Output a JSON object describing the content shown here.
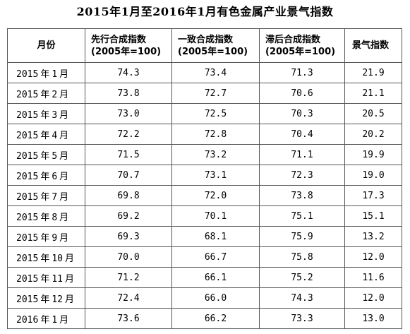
{
  "title": "2015年1月至2016年1月有色金属产业景气指数",
  "headers": [
    {
      "line1": "月份",
      "line2": ""
    },
    {
      "line1": "先行合成指数",
      "line2": "(2005年=100)"
    },
    {
      "line1": "一致合成指数",
      "line2": "(2005年=100)"
    },
    {
      "line1": "滞后合成指数",
      "line2": "(2005年=100)"
    },
    {
      "line1": "景气指数",
      "line2": ""
    }
  ],
  "rows": [
    {
      "month": "2015年1月",
      "leading": "74.3",
      "coincident": "73.4",
      "lagging": "71.3",
      "climate": "21.9"
    },
    {
      "month": "2015年2月",
      "leading": "73.8",
      "coincident": "72.7",
      "lagging": "70.6",
      "climate": "21.1"
    },
    {
      "month": "2015年3月",
      "leading": "73.0",
      "coincident": "72.5",
      "lagging": "70.3",
      "climate": "20.5"
    },
    {
      "month": "2015年4月",
      "leading": "72.2",
      "coincident": "72.8",
      "lagging": "70.4",
      "climate": "20.2"
    },
    {
      "month": "2015年5月",
      "leading": "71.5",
      "coincident": "73.2",
      "lagging": "71.1",
      "climate": "19.9"
    },
    {
      "month": "2015年6月",
      "leading": "70.7",
      "coincident": "73.1",
      "lagging": "72.3",
      "climate": "19.0"
    },
    {
      "month": "2015年7月",
      "leading": "69.8",
      "coincident": "72.0",
      "lagging": "73.8",
      "climate": "17.3"
    },
    {
      "month": "2015年8月",
      "leading": "69.2",
      "coincident": "70.1",
      "lagging": "75.1",
      "climate": "15.1"
    },
    {
      "month": "2015年9月",
      "leading": "69.3",
      "coincident": "68.1",
      "lagging": "75.9",
      "climate": "13.2"
    },
    {
      "month": "2015年10月",
      "leading": "70.0",
      "coincident": "66.7",
      "lagging": "75.8",
      "climate": "12.0"
    },
    {
      "month": "2015年11月",
      "leading": "71.2",
      "coincident": "66.1",
      "lagging": "75.2",
      "climate": "11.6"
    },
    {
      "month": "2015年12月",
      "leading": "72.4",
      "coincident": "66.0",
      "lagging": "74.3",
      "climate": "12.0"
    },
    {
      "month": "2016年1月",
      "leading": "73.6",
      "coincident": "66.2",
      "lagging": "73.3",
      "climate": "13.0"
    }
  ]
}
